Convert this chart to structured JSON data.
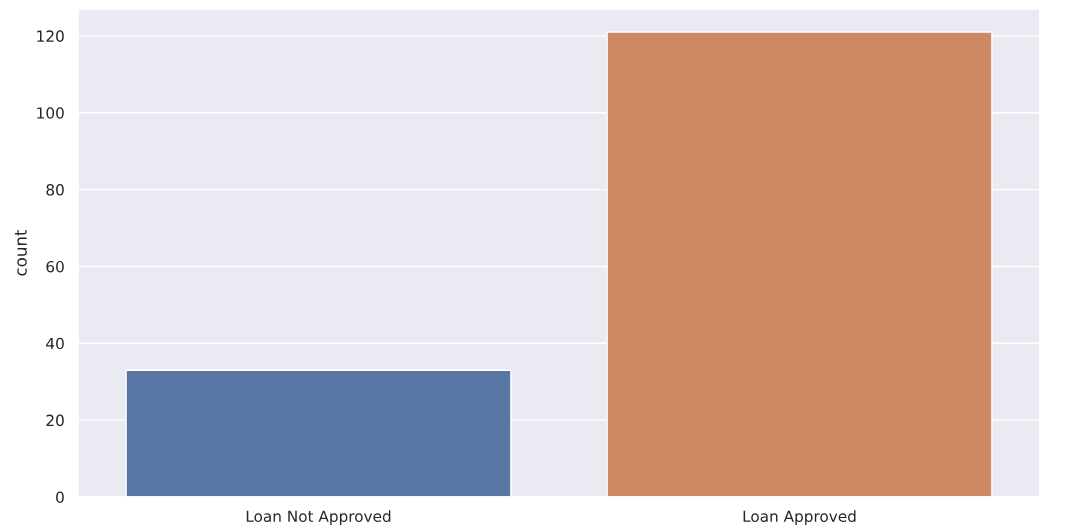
{
  "chart_data": {
    "type": "bar",
    "ylabel": "count",
    "categories": [
      "Loan Not Approved",
      "Loan Approved"
    ],
    "values": [
      33,
      121
    ],
    "colors": [
      "#5975a4",
      "#cc8963"
    ],
    "ylim": [
      0,
      127
    ],
    "yticks": [
      0,
      20,
      40,
      60,
      80,
      100,
      120
    ],
    "grid": "y",
    "legend": false
  }
}
